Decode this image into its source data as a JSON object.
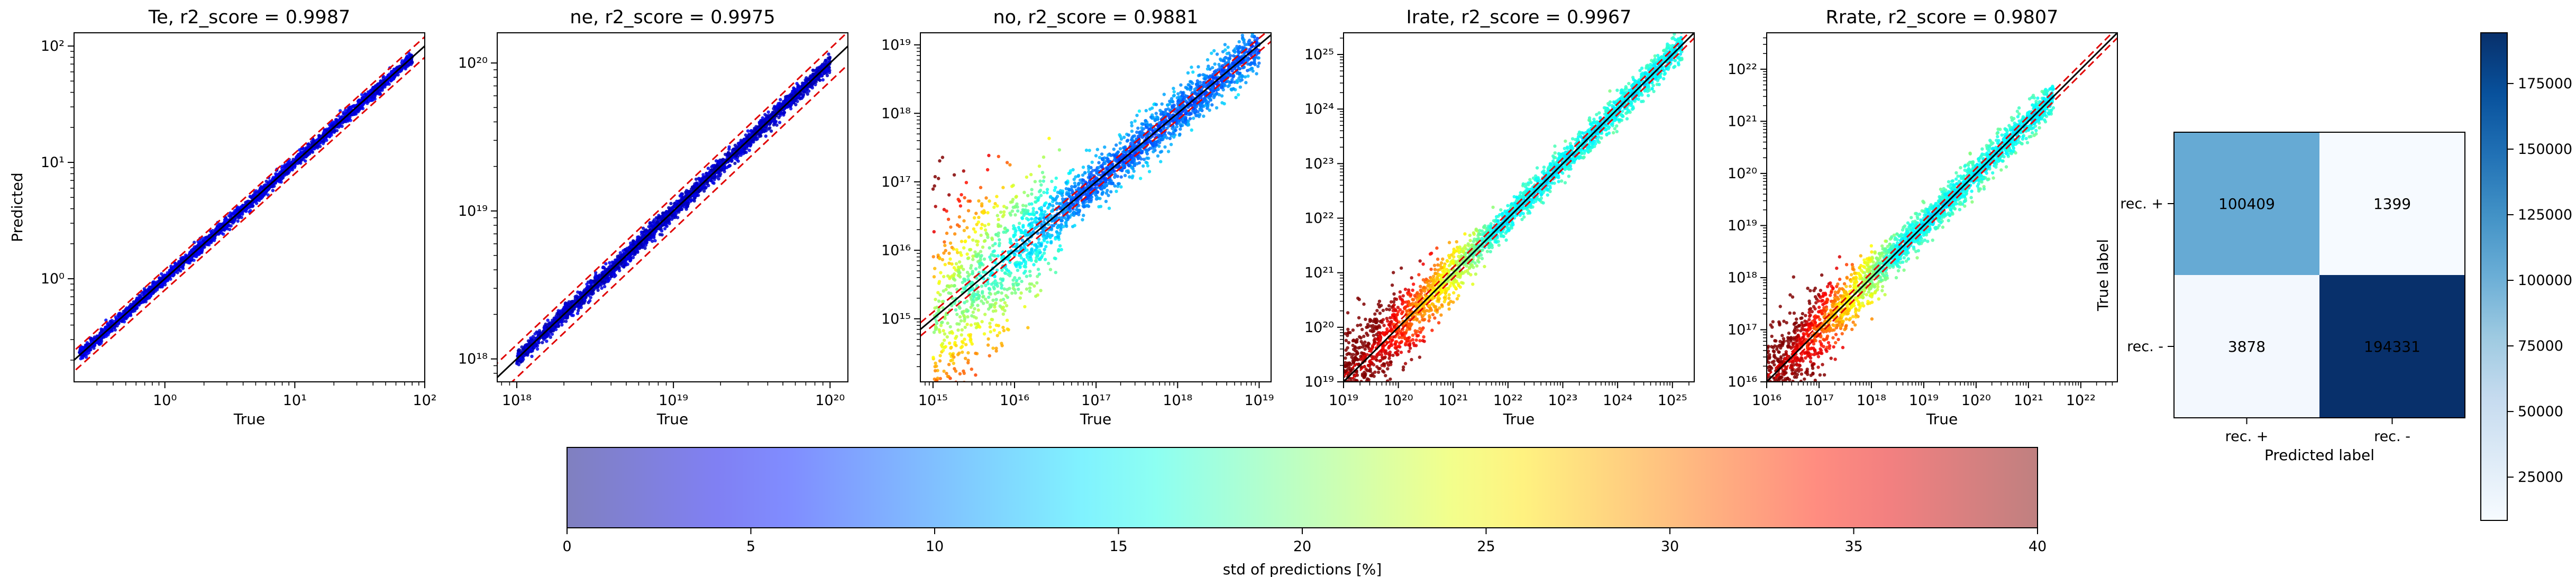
{
  "chart_data": [
    {
      "type": "scatter",
      "title": "Te, r2_score = 0.9987",
      "xlabel": "True",
      "ylabel": "Predicted",
      "scale": "log",
      "xlim": [
        0.2,
        100
      ],
      "ylim": [
        0.13,
        130
      ],
      "x_ticks": [
        {
          "v": 1,
          "label": "10⁰"
        },
        {
          "v": 10,
          "label": "10¹"
        },
        {
          "v": 100,
          "label": "10²"
        }
      ],
      "y_ticks": [
        {
          "v": 1,
          "label": "10⁰"
        },
        {
          "v": 10,
          "label": "10¹"
        },
        {
          "v": 100,
          "label": "10²"
        }
      ],
      "band": {
        "xmin": 0.22,
        "xmax": 80,
        "spread": 0.045,
        "low_tail": 0,
        "color_center": 2,
        "color_low": 2
      },
      "reference_lines": {
        "identity": true,
        "red_dashed_factors": [
          0.8,
          1.2
        ]
      }
    },
    {
      "type": "scatter",
      "title": "ne, r2_score = 0.9975",
      "xlabel": "True",
      "ylabel": "",
      "scale": "log",
      "xlim": [
        7.5e+17,
        1.3e+20
      ],
      "ylim": [
        7e+17,
        1.6e+20
      ],
      "x_ticks": [
        {
          "v": 1e+18,
          "label": "10¹⁸"
        },
        {
          "v": 1e+19,
          "label": "10¹⁹"
        },
        {
          "v": 1e+20,
          "label": "10²⁰"
        }
      ],
      "y_ticks": [
        {
          "v": 1e+18,
          "label": "10¹⁸"
        },
        {
          "v": 1e+19,
          "label": "10¹⁹"
        },
        {
          "v": 1e+20,
          "label": "10²⁰"
        }
      ],
      "band": {
        "xmin": 1e+18,
        "xmax": 1e+20,
        "spread": 0.05,
        "low_tail": 0,
        "color_center": 1,
        "color_low": 1
      },
      "reference_lines": {
        "identity": true,
        "red_dashed_factors": [
          0.75,
          1.25
        ]
      }
    },
    {
      "type": "scatter",
      "title": "no, r2_score = 0.9881",
      "xlabel": "True",
      "ylabel": "",
      "scale": "log",
      "xlim": [
        700000000000000.0,
        1.4e+19
      ],
      "ylim": [
        120000000000000.0,
        1.5e+19
      ],
      "x_ticks": [
        {
          "v": 1000000000000000.0,
          "label": "10¹⁵"
        },
        {
          "v": 1e+16,
          "label": "10¹⁶"
        },
        {
          "v": 1e+17,
          "label": "10¹⁷"
        },
        {
          "v": 1e+18,
          "label": "10¹⁸"
        },
        {
          "v": 1e+19,
          "label": "10¹⁹"
        }
      ],
      "y_ticks": [
        {
          "v": 1000000000000000.0,
          "label": "10¹⁵"
        },
        {
          "v": 1e+16,
          "label": "10¹⁶"
        },
        {
          "v": 1e+17,
          "label": "10¹⁷"
        },
        {
          "v": 1e+18,
          "label": "10¹⁸"
        },
        {
          "v": 1e+19,
          "label": "10¹⁹"
        }
      ],
      "band": {
        "xmin": 1000000000000000.0,
        "xmax": 1e+19,
        "spread": 0.3,
        "low_tail": 3.0,
        "color_center": 6,
        "color_low": 18
      },
      "reference_lines": {
        "identity": true,
        "red_dashed_factors": [
          0.8,
          1.25
        ]
      }
    },
    {
      "type": "scatter",
      "title": "Irate, r2_score = 0.9967",
      "xlabel": "True",
      "ylabel": "",
      "scale": "log",
      "xlim": [
        1e+19,
        2.5e+25
      ],
      "ylim": [
        1e+19,
        2.5e+25
      ],
      "x_ticks": [
        {
          "v": 1e+19,
          "label": "10¹⁹"
        },
        {
          "v": 1e+20,
          "label": "10²⁰"
        },
        {
          "v": 1e+21,
          "label": "10²¹"
        },
        {
          "v": 1e+22,
          "label": "10²²"
        },
        {
          "v": 1e+23,
          "label": "10²³"
        },
        {
          "v": 1e+24,
          "label": "10²⁴"
        },
        {
          "v": 1e+25,
          "label": "10²⁵"
        }
      ],
      "y_ticks": [
        {
          "v": 1e+19,
          "label": "10¹⁹"
        },
        {
          "v": 1e+20,
          "label": "10²⁰"
        },
        {
          "v": 1e+21,
          "label": "10²¹"
        },
        {
          "v": 1e+22,
          "label": "10²²"
        },
        {
          "v": 1e+23,
          "label": "10²³"
        },
        {
          "v": 1e+24,
          "label": "10²⁴"
        },
        {
          "v": 1e+25,
          "label": "10²⁵"
        }
      ],
      "band": {
        "xmin": 1e+19,
        "xmax": 1.5e+25,
        "spread": 0.25,
        "low_tail": 1.5,
        "color_center": 12,
        "color_low": 40
      },
      "reference_lines": {
        "identity": true,
        "red_dashed_factors": [
          0.8,
          1.25
        ]
      }
    },
    {
      "type": "scatter",
      "title": "Rrate, r2_score = 0.9807",
      "xlabel": "True",
      "ylabel": "",
      "scale": "log",
      "xlim": [
        1e+16,
        5e+22
      ],
      "ylim": [
        1e+16,
        5e+22
      ],
      "x_ticks": [
        {
          "v": 1e+16,
          "label": "10¹⁶"
        },
        {
          "v": 1e+17,
          "label": "10¹⁷"
        },
        {
          "v": 1e+18,
          "label": "10¹⁸"
        },
        {
          "v": 1e+19,
          "label": "10¹⁹"
        },
        {
          "v": 1e+20,
          "label": "10²⁰"
        },
        {
          "v": 1e+21,
          "label": "10²¹"
        },
        {
          "v": 1e+22,
          "label": "10²²"
        }
      ],
      "y_ticks": [
        {
          "v": 1e+16,
          "label": "10¹⁶"
        },
        {
          "v": 1e+17,
          "label": "10¹⁷"
        },
        {
          "v": 1e+18,
          "label": "10¹⁸"
        },
        {
          "v": 1e+19,
          "label": "10¹⁹"
        },
        {
          "v": 1e+20,
          "label": "10²⁰"
        },
        {
          "v": 1e+21,
          "label": "10²¹"
        },
        {
          "v": 1e+22,
          "label": "10²²"
        }
      ],
      "band": {
        "xmin": 1e+16,
        "xmax": 3e+21,
        "spread": 0.3,
        "low_tail": 1.4,
        "color_center": 12,
        "color_low": 40
      },
      "reference_lines": {
        "identity": true,
        "red_dashed_factors": [
          0.8,
          1.25
        ]
      }
    },
    {
      "type": "heatmap",
      "title": "",
      "xlabel": "Predicted label",
      "ylabel": "True label",
      "x_categories": [
        "rec. +",
        "rec. -"
      ],
      "y_categories": [
        "rec. +",
        "rec. -"
      ],
      "values": [
        [
          100409,
          1399
        ],
        [
          3878,
          194331
        ]
      ],
      "colormap": "Blues",
      "colorbar": {
        "min": 0,
        "max": 194331,
        "ticks": [
          25000,
          50000,
          75000,
          100000,
          125000,
          150000,
          175000
        ]
      }
    }
  ],
  "colorbar": {
    "label": "std of predictions [%]",
    "range": [
      0,
      40
    ],
    "ticks": [
      0,
      5,
      10,
      15,
      20,
      25,
      30,
      35,
      40
    ],
    "colormap": "jet",
    "alpha": 0.5
  }
}
